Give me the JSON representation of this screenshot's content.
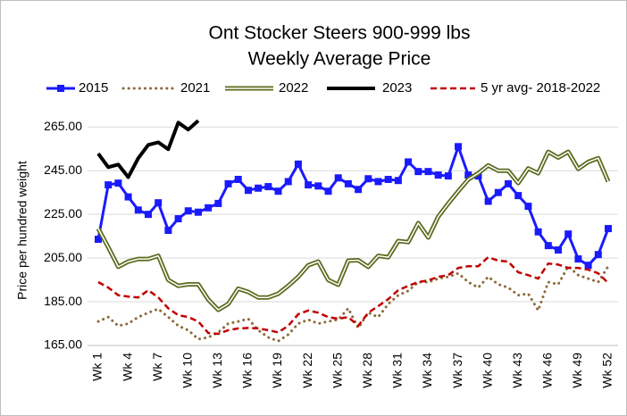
{
  "chart_data": {
    "type": "line",
    "title": "Ont Stocker Steers 900-999 lbs",
    "subtitle": "Weekly Average Price",
    "y_label": "Price per hundred weight",
    "categories": [
      "Wk 1",
      null,
      null,
      "Wk 4",
      null,
      null,
      "Wk 7",
      null,
      null,
      "Wk 10",
      null,
      null,
      "Wk 13",
      null,
      null,
      "Wk 16",
      null,
      null,
      "Wk 19",
      null,
      null,
      "Wk 22",
      null,
      null,
      "Wk 25",
      null,
      null,
      "Wk 28",
      null,
      null,
      "Wk 31",
      null,
      null,
      "Wk 34",
      null,
      null,
      "Wk 37",
      null,
      null,
      "Wk 40",
      null,
      null,
      "Wk 43",
      null,
      null,
      "Wk 46",
      null,
      null,
      "Wk 49",
      null,
      null,
      "Wk 52"
    ],
    "ylim": [
      165,
      270
    ],
    "yticks": [
      {
        "value": 165,
        "label": "165.00"
      },
      {
        "value": 185,
        "label": "185.00"
      },
      {
        "value": 205,
        "label": "205.00"
      },
      {
        "value": 225,
        "label": "225.00"
      },
      {
        "value": 245,
        "label": "245.00"
      },
      {
        "value": 265,
        "label": "265.00"
      }
    ],
    "grid": true,
    "legend": "top",
    "series": [
      {
        "name": "2015",
        "color": "#1a1aff",
        "style": "marker",
        "values": [
          213.6,
          238.5,
          239.3,
          233,
          227,
          225,
          230.3,
          217.7,
          223,
          226.6,
          226,
          228,
          230,
          239,
          241,
          236,
          237,
          237.7,
          235.6,
          240,
          248,
          238.5,
          238,
          235.6,
          241.7,
          239,
          236.4,
          241.3,
          240,
          241,
          240.5,
          249,
          244.6,
          244.6,
          243,
          242.6,
          256,
          243,
          242.6,
          231,
          235,
          239,
          233.6,
          228.7,
          217,
          210.7,
          208.7,
          216,
          204.6,
          201.7,
          206.6,
          218.5
        ]
      },
      {
        "name": "2021",
        "color": "#8b6a3a",
        "style": "dotted",
        "values": [
          176,
          178,
          174,
          175,
          178,
          180,
          181.7,
          178,
          174,
          172,
          167.9,
          168.7,
          171,
          175,
          176,
          177.2,
          172,
          168.7,
          167,
          170,
          175,
          176.8,
          175,
          176,
          176.8,
          182,
          173,
          180,
          178,
          184,
          188,
          190,
          194,
          194,
          195.6,
          196.4,
          198,
          194,
          191.5,
          196.4,
          193,
          191.5,
          188,
          188.7,
          181,
          194,
          193,
          201.3,
          197.2,
          195.6,
          194,
          201.3
        ]
      },
      {
        "name": "2022",
        "color": "#5a6b1e",
        "style": "double",
        "values": [
          218.5,
          210,
          201,
          203.4,
          204.6,
          204.6,
          206,
          195,
          192.3,
          193,
          193,
          186,
          181.3,
          184,
          191,
          189.5,
          187,
          187,
          188.7,
          192.3,
          196.4,
          201.7,
          203.4,
          195,
          192.8,
          203.8,
          204,
          201,
          206,
          205.4,
          212.8,
          212.3,
          221,
          214.4,
          224,
          230,
          235.6,
          241,
          243.8,
          247.4,
          245,
          245,
          239.3,
          246,
          243.8,
          253.6,
          251,
          253.6,
          245.8,
          249,
          250.7,
          240
        ]
      },
      {
        "name": "2023",
        "color": "#000000",
        "style": "thick",
        "values": [
          252.8,
          246.6,
          247.8,
          242,
          250.7,
          256.8,
          258,
          254.8,
          267,
          263.8,
          267.9,
          null,
          null,
          null,
          null,
          null,
          null,
          null,
          null,
          null,
          null,
          null,
          null,
          null,
          null,
          null,
          null,
          null,
          null,
          null,
          null,
          null,
          null,
          null,
          null,
          null,
          null,
          null,
          null,
          null,
          null,
          null,
          null,
          null,
          null,
          null,
          null,
          null,
          null,
          null,
          null,
          null
        ]
      },
      {
        "name": "5 yr avg- 2018-2022",
        "color": "#c00000",
        "style": "dashed",
        "values": [
          194,
          191.5,
          188,
          187.4,
          187,
          190.3,
          187,
          182,
          178.9,
          178,
          176,
          170.7,
          170.3,
          172,
          172.8,
          173,
          172.8,
          172,
          171,
          174,
          179.3,
          181,
          180,
          178,
          177.2,
          178,
          174,
          180,
          183,
          186.2,
          190.3,
          192.3,
          194,
          194.8,
          196.4,
          197.2,
          200.5,
          201.3,
          201.3,
          205.4,
          203.8,
          203.4,
          198.5,
          197.2,
          195.6,
          202.5,
          202,
          200.5,
          200.5,
          199.7,
          198,
          193.6
        ]
      }
    ]
  }
}
